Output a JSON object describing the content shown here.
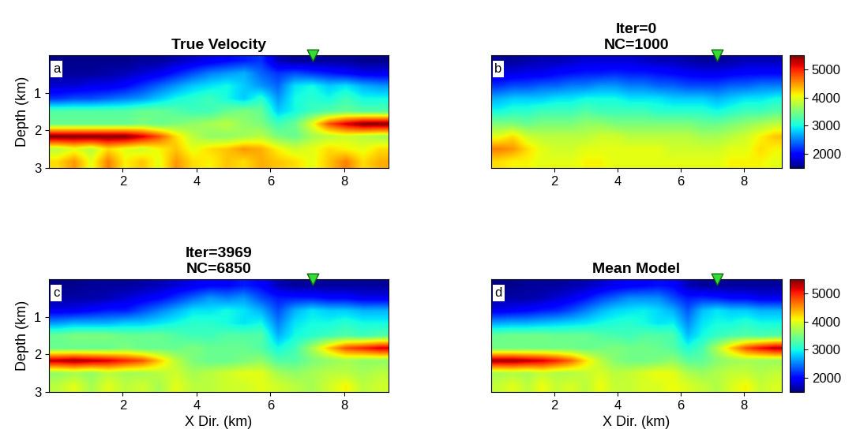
{
  "chart_data": [
    {
      "type": "heatmap",
      "title": "True Velocity",
      "annotation": "a",
      "ylabel": "Depth (km)",
      "xlim": [
        0,
        9.2
      ],
      "ylim": [
        3,
        0
      ],
      "xticks": [
        2,
        4,
        6,
        8
      ],
      "yticks": [
        1,
        2,
        3
      ],
      "color_range": [
        1500,
        5500
      ],
      "series": [
        {
          "type": "scatter",
          "x": [
            7.15
          ],
          "y": [
            0
          ],
          "color": "#33dd33",
          "marker": "triangle_down"
        }
      ],
      "cells": [
        [
          1550,
          1550,
          1550,
          1550,
          1550,
          1600,
          1600,
          1700,
          1800,
          1900,
          2000,
          2100,
          2200,
          1700,
          1600,
          1600,
          1600,
          1600,
          1550,
          1550
        ],
        [
          1600,
          1600,
          1600,
          1650,
          1700,
          1800,
          1900,
          2100,
          2300,
          2500,
          2600,
          2700,
          2400,
          2200,
          2300,
          2200,
          2100,
          2000,
          1900,
          1900
        ],
        [
          1800,
          1800,
          1900,
          1900,
          2000,
          2200,
          2400,
          2600,
          2800,
          2900,
          3000,
          2800,
          2600,
          2400,
          2900,
          3000,
          2800,
          2900,
          2700,
          2600
        ],
        [
          2200,
          2300,
          2300,
          2400,
          2500,
          2600,
          2800,
          3000,
          3100,
          3200,
          3000,
          2800,
          3100,
          2600,
          3000,
          3100,
          3000,
          3200,
          3000,
          3000
        ],
        [
          3300,
          3300,
          3300,
          3300,
          3300,
          3400,
          3400,
          3300,
          3200,
          3200,
          3400,
          3500,
          3400,
          2800,
          3000,
          3200,
          3300,
          3400,
          3300,
          3300
        ],
        [
          3400,
          3400,
          3400,
          3400,
          3400,
          3500,
          3400,
          3500,
          3600,
          3700,
          3800,
          3600,
          3500,
          3200,
          3400,
          4000,
          4800,
          5200,
          5500,
          5500
        ],
        [
          5500,
          5500,
          5500,
          5500,
          5500,
          5200,
          4800,
          4200,
          3800,
          3600,
          3600,
          3700,
          3800,
          3500,
          3400,
          3700,
          3800,
          3900,
          3800,
          3700
        ],
        [
          3800,
          4000,
          3800,
          4200,
          4000,
          3900,
          4100,
          4300,
          4000,
          4200,
          4300,
          4500,
          4400,
          4100,
          3900,
          4000,
          4200,
          4100,
          4000,
          4200
        ],
        [
          4200,
          4500,
          4000,
          4600,
          4100,
          4300,
          4000,
          4500,
          4200,
          4100,
          4300,
          4200,
          4400,
          4300,
          4200,
          4000,
          4300,
          4600,
          4200,
          4400
        ]
      ]
    },
    {
      "type": "heatmap",
      "title": "Iter=0\nNC=1000",
      "annotation": "b",
      "xlim": [
        0,
        9.2
      ],
      "ylim": [
        3,
        0
      ],
      "xticks": [
        2,
        4,
        6,
        8
      ],
      "yticks": [
        1,
        2,
        3
      ],
      "tick_labels": "x",
      "colorbar": {
        "range": [
          1500,
          5500
        ],
        "ticks": [
          2000,
          3000,
          4000,
          5000
        ]
      },
      "series": [
        {
          "type": "scatter",
          "x": [
            7.15
          ],
          "y": [
            0
          ],
          "color": "#33dd33",
          "marker": "triangle_down"
        }
      ],
      "cells": [
        [
          1600,
          1600,
          1650,
          1700,
          1700,
          1750,
          1800,
          1800,
          1800,
          1800,
          1750,
          1700,
          1700,
          1650,
          1600,
          1600,
          1650,
          1700,
          1700,
          1700
        ],
        [
          1800,
          1850,
          1900,
          1900,
          2000,
          2050,
          2100,
          2100,
          2150,
          2100,
          2100,
          2050,
          2000,
          1950,
          1900,
          1900,
          1950,
          2000,
          2000,
          2000
        ],
        [
          2200,
          2300,
          2300,
          2400,
          2400,
          2500,
          2500,
          2600,
          2600,
          2500,
          2500,
          2400,
          2400,
          2300,
          2300,
          2300,
          2400,
          2400,
          2500,
          2500
        ],
        [
          2700,
          2800,
          2800,
          2800,
          2900,
          2900,
          3000,
          3000,
          3000,
          2900,
          2900,
          2900,
          2800,
          2800,
          2800,
          2700,
          2800,
          2900,
          2900,
          3000
        ],
        [
          3000,
          3100,
          3100,
          3200,
          3200,
          3200,
          3300,
          3200,
          3200,
          3200,
          3200,
          3100,
          3100,
          3100,
          3100,
          3000,
          3100,
          3200,
          3200,
          3300
        ],
        [
          3500,
          3500,
          3400,
          3500,
          3500,
          3500,
          3600,
          3600,
          3500,
          3500,
          3500,
          3500,
          3500,
          3500,
          3400,
          3400,
          3500,
          3600,
          3700,
          3800
        ],
        [
          4000,
          4200,
          3900,
          3800,
          3800,
          3800,
          3800,
          3900,
          3900,
          3800,
          3800,
          3800,
          3800,
          3800,
          3700,
          3700,
          3800,
          3900,
          4100,
          4300
        ],
        [
          4600,
          4500,
          4200,
          4000,
          3900,
          3900,
          4000,
          4000,
          4000,
          4000,
          4000,
          4000,
          3900,
          3900,
          3900,
          3900,
          4000,
          4000,
          4200,
          4100
        ],
        [
          4200,
          4100,
          4100,
          4000,
          4000,
          4000,
          4100,
          4100,
          4000,
          4000,
          4000,
          4000,
          4000,
          4000,
          4000,
          4000,
          4100,
          4100,
          4100,
          4000
        ]
      ]
    },
    {
      "type": "heatmap",
      "title": "Iter=3969\nNC=6850",
      "annotation": "c",
      "xlabel": "X Dir. (km)",
      "ylabel": "Depth (km)",
      "xlim": [
        0,
        9.2
      ],
      "ylim": [
        3,
        0
      ],
      "xticks": [
        2,
        4,
        6,
        8
      ],
      "yticks": [
        1,
        2,
        3
      ],
      "color_range": [
        1500,
        5500
      ],
      "series": [
        {
          "type": "scatter",
          "x": [
            7.15
          ],
          "y": [
            0
          ],
          "color": "#33dd33",
          "marker": "triangle_down"
        }
      ],
      "cells": [
        [
          1550,
          1550,
          1600,
          1600,
          1600,
          1650,
          1700,
          1800,
          1900,
          2000,
          2000,
          2100,
          2000,
          1700,
          1600,
          1600,
          1600,
          1600,
          1600,
          1600
        ],
        [
          1600,
          1650,
          1650,
          1700,
          1800,
          1900,
          2000,
          2200,
          2400,
          2600,
          2500,
          2600,
          2300,
          2100,
          2100,
          2100,
          2000,
          2000,
          1900,
          1900
        ],
        [
          1900,
          1900,
          2000,
          2100,
          2100,
          2300,
          2500,
          2700,
          2900,
          2900,
          3000,
          2900,
          2700,
          2300,
          2700,
          2900,
          2800,
          2800,
          2700,
          2700
        ],
        [
          2600,
          2700,
          2700,
          2700,
          2800,
          2800,
          2900,
          3000,
          3100,
          3100,
          3000,
          2900,
          3000,
          2500,
          2900,
          3000,
          3000,
          3100,
          3000,
          3000
        ],
        [
          3400,
          3500,
          3500,
          3500,
          3400,
          3400,
          3400,
          3300,
          3200,
          3200,
          3300,
          3300,
          3300,
          2700,
          3000,
          3100,
          3200,
          3300,
          3200,
          3300
        ],
        [
          3400,
          3400,
          3400,
          3400,
          3500,
          3400,
          3400,
          3400,
          3500,
          3400,
          3400,
          3400,
          3300,
          3000,
          3200,
          3700,
          4300,
          4800,
          5000,
          5200
        ],
        [
          5300,
          5400,
          5300,
          5200,
          5000,
          4800,
          4300,
          3800,
          3500,
          3400,
          3400,
          3500,
          3600,
          3300,
          3300,
          3500,
          3600,
          3700,
          3600,
          3600
        ],
        [
          3600,
          3700,
          3600,
          3800,
          3700,
          3700,
          3800,
          3900,
          3700,
          3800,
          3900,
          4000,
          4000,
          3700,
          3600,
          3700,
          3800,
          3800,
          3700,
          3800
        ],
        [
          3800,
          4000,
          3700,
          4000,
          3800,
          3900,
          3700,
          4000,
          3800,
          3800,
          3900,
          3900,
          4000,
          3900,
          3800,
          3700,
          3900,
          4100,
          3800,
          3900
        ]
      ]
    },
    {
      "type": "heatmap",
      "title": "Mean Model",
      "annotation": "d",
      "xlabel": "X Dir. (km)",
      "xlim": [
        0,
        9.2
      ],
      "ylim": [
        3,
        0
      ],
      "xticks": [
        2,
        4,
        6,
        8
      ],
      "yticks": [
        1,
        2,
        3
      ],
      "tick_labels": "x",
      "colorbar": {
        "range": [
          1500,
          5500
        ],
        "ticks": [
          2000,
          3000,
          4000,
          5000
        ]
      },
      "series": [
        {
          "type": "scatter",
          "x": [
            7.15
          ],
          "y": [
            0
          ],
          "color": "#33dd33",
          "marker": "triangle_down"
        }
      ],
      "cells": [
        [
          1550,
          1550,
          1600,
          1600,
          1600,
          1650,
          1700,
          1800,
          1900,
          1950,
          2000,
          2050,
          2000,
          1700,
          1600,
          1600,
          1600,
          1600,
          1600,
          1600
        ],
        [
          1600,
          1650,
          1650,
          1700,
          1800,
          1900,
          2050,
          2250,
          2400,
          2550,
          2550,
          2550,
          2300,
          2100,
          2150,
          2100,
          2000,
          2000,
          1900,
          1900
        ],
        [
          1900,
          1950,
          2000,
          2100,
          2150,
          2300,
          2500,
          2700,
          2850,
          2900,
          2950,
          2850,
          2700,
          2350,
          2750,
          2900,
          2800,
          2800,
          2700,
          2700
        ],
        [
          2650,
          2700,
          2700,
          2750,
          2800,
          2850,
          2900,
          3000,
          3050,
          3100,
          3000,
          2900,
          2950,
          2550,
          2900,
          3000,
          3000,
          3100,
          3000,
          3000
        ],
        [
          3400,
          3450,
          3450,
          3450,
          3400,
          3400,
          3400,
          3300,
          3250,
          3200,
          3300,
          3300,
          3250,
          2750,
          3000,
          3150,
          3250,
          3300,
          3250,
          3300
        ],
        [
          3450,
          3450,
          3450,
          3450,
          3450,
          3450,
          3400,
          3450,
          3500,
          3450,
          3450,
          3400,
          3300,
          3050,
          3250,
          3750,
          4300,
          4800,
          5100,
          5300
        ],
        [
          5400,
          5400,
          5300,
          5200,
          5000,
          4700,
          4200,
          3800,
          3550,
          3450,
          3450,
          3500,
          3600,
          3350,
          3350,
          3550,
          3650,
          3700,
          3650,
          3650
        ],
        [
          3700,
          3750,
          3700,
          3850,
          3750,
          3750,
          3850,
          3950,
          3800,
          3850,
          3950,
          4050,
          4000,
          3750,
          3650,
          3750,
          3850,
          3850,
          3750,
          3850
        ],
        [
          3850,
          4000,
          3800,
          4050,
          3850,
          3950,
          3800,
          4050,
          3850,
          3850,
          3950,
          3950,
          4050,
          3950,
          3850,
          3750,
          3950,
          4100,
          3850,
          3950
        ]
      ]
    }
  ]
}
